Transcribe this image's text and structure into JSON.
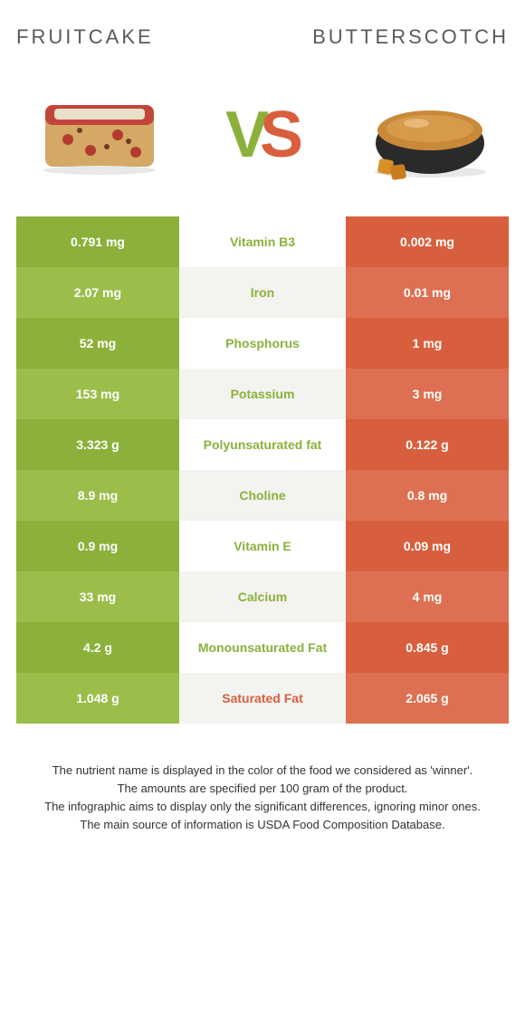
{
  "header": {
    "left": "FRUITCAKE",
    "right": "BUTTERSCOTCH"
  },
  "vs": {
    "v": "V",
    "s": "S"
  },
  "colors": {
    "greenA": "#8bb13b",
    "greenB": "#9bbe4a",
    "orangeA": "#d85f3e",
    "orangeB": "#dd7052",
    "midA": "#ffffff",
    "midB": "#f3f3ef",
    "midTextGreen": "#8bb13b",
    "midTextOrange": "#d85f3e"
  },
  "rows": [
    {
      "left": "0.791 mg",
      "label": "Vitamin B3",
      "right": "0.002 mg",
      "winner": "left"
    },
    {
      "left": "2.07 mg",
      "label": "Iron",
      "right": "0.01 mg",
      "winner": "left"
    },
    {
      "left": "52 mg",
      "label": "Phosphorus",
      "right": "1 mg",
      "winner": "left"
    },
    {
      "left": "153 mg",
      "label": "Potassium",
      "right": "3 mg",
      "winner": "left"
    },
    {
      "left": "3.323 g",
      "label": "Polyunsaturated fat",
      "right": "0.122 g",
      "winner": "left"
    },
    {
      "left": "8.9 mg",
      "label": "Choline",
      "right": "0.8 mg",
      "winner": "left"
    },
    {
      "left": "0.9 mg",
      "label": "Vitamin E",
      "right": "0.09 mg",
      "winner": "left"
    },
    {
      "left": "33 mg",
      "label": "Calcium",
      "right": "4 mg",
      "winner": "left"
    },
    {
      "left": "4.2 g",
      "label": "Monounsaturated Fat",
      "right": "0.845 g",
      "winner": "left"
    },
    {
      "left": "1.048 g",
      "label": "Saturated Fat",
      "right": "2.065 g",
      "winner": "right"
    }
  ],
  "footer": [
    "The nutrient name is displayed in the color of the food we considered as 'winner'.",
    "The amounts are specified per 100 gram of the product.",
    "The infographic aims to display only the significant differences, ignoring minor ones.",
    "The main source of information is USDA Food Composition Database."
  ]
}
